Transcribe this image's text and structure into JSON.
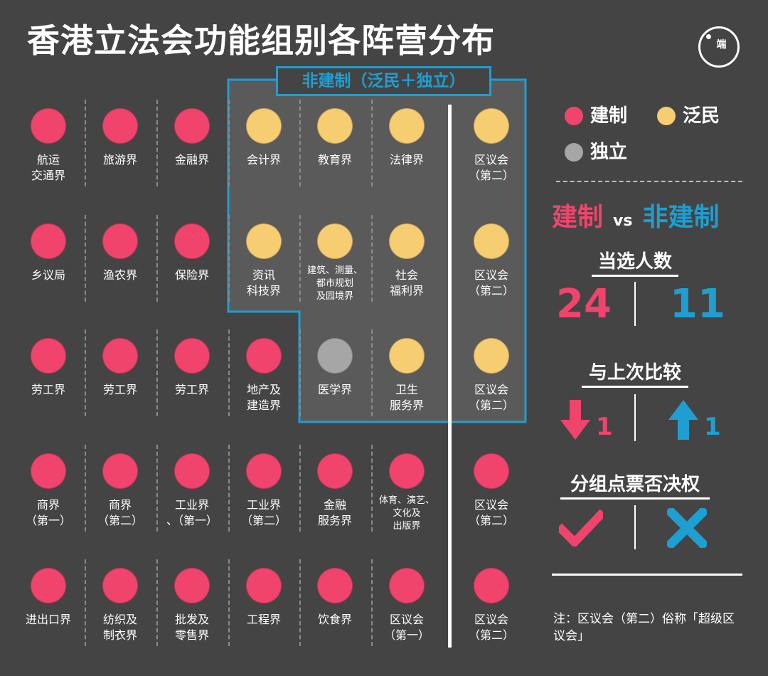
{
  "title": "香港立法会功能组别各阵营分布",
  "logo_text": "端",
  "box_label": "非建制（泛民＋独立）",
  "colors": {
    "pro_establishment": "#f0446c",
    "pan_democrat": "#f7cd72",
    "independent": "#a6a6a6",
    "non_establishment_accent": "#1f9ed1",
    "background": "#444444"
  },
  "legend": {
    "pro_establishment": "建制",
    "pan_democrat": "泛民",
    "independent": "独立"
  },
  "chart_data": {
    "type": "table",
    "columns": 7,
    "rows": 5,
    "seats": [
      {
        "label": "航运\n交通界",
        "camp": "pro_establishment"
      },
      {
        "label": "旅游界",
        "camp": "pro_establishment"
      },
      {
        "label": "金融界",
        "camp": "pro_establishment"
      },
      {
        "label": "会计界",
        "camp": "pan_democrat"
      },
      {
        "label": "教育界",
        "camp": "pan_democrat"
      },
      {
        "label": "法律界",
        "camp": "pan_democrat"
      },
      {
        "label": "区议会\n（第二）",
        "camp": "pan_democrat"
      },
      {
        "label": "乡议局",
        "camp": "pro_establishment"
      },
      {
        "label": "渔农界",
        "camp": "pro_establishment"
      },
      {
        "label": "保险界",
        "camp": "pro_establishment"
      },
      {
        "label": "资讯\n科技界",
        "camp": "pan_democrat"
      },
      {
        "label": "建筑、测量、\n都市规划\n及园境界",
        "camp": "pan_democrat",
        "small": true
      },
      {
        "label": "社会\n福利界",
        "camp": "pan_democrat"
      },
      {
        "label": "区议会\n（第二）",
        "camp": "pan_democrat"
      },
      {
        "label": "劳工界",
        "camp": "pro_establishment"
      },
      {
        "label": "劳工界",
        "camp": "pro_establishment"
      },
      {
        "label": "劳工界",
        "camp": "pro_establishment"
      },
      {
        "label": "地产及\n建造界",
        "camp": "pro_establishment"
      },
      {
        "label": "医学界",
        "camp": "independent"
      },
      {
        "label": "卫生\n服务界",
        "camp": "pan_democrat"
      },
      {
        "label": "区议会\n（第二）",
        "camp": "pan_democrat"
      },
      {
        "label": "商界\n（第一）",
        "camp": "pro_establishment"
      },
      {
        "label": "商界\n（第二）",
        "camp": "pro_establishment"
      },
      {
        "label": "工业界\n、（第一）",
        "camp": "pro_establishment"
      },
      {
        "label": "工业界\n（第二）",
        "camp": "pro_establishment"
      },
      {
        "label": "金融\n服务界",
        "camp": "pro_establishment"
      },
      {
        "label": "体育、演艺、\n文化及\n出版界",
        "camp": "pro_establishment",
        "small": true
      },
      {
        "label": "区议会\n（第二）",
        "camp": "pro_establishment"
      },
      {
        "label": "进出口界",
        "camp": "pro_establishment"
      },
      {
        "label": "纺织及\n制衣界",
        "camp": "pro_establishment"
      },
      {
        "label": "批发及\n零售界",
        "camp": "pro_establishment"
      },
      {
        "label": "工程界",
        "camp": "pro_establishment"
      },
      {
        "label": "饮食界",
        "camp": "pro_establishment"
      },
      {
        "label": "区议会\n（第一）",
        "camp": "pro_establishment"
      },
      {
        "label": "区议会\n（第二）",
        "camp": "pro_establishment"
      }
    ]
  },
  "sidebar": {
    "vs_left": "建制",
    "vs_mid": "vs",
    "vs_right": "非建制",
    "elected_title": "当选人数",
    "elected_pro": "24",
    "elected_non": "11",
    "compare_title": "与上次比较",
    "compare_pro": "1",
    "compare_non": "1",
    "compare_pro_direction": "down",
    "compare_non_direction": "up",
    "veto_title": "分组点票否决权",
    "veto_pro": "check",
    "veto_non": "cross"
  },
  "note": "注：区议会（第二）俗称「超级区议会」"
}
